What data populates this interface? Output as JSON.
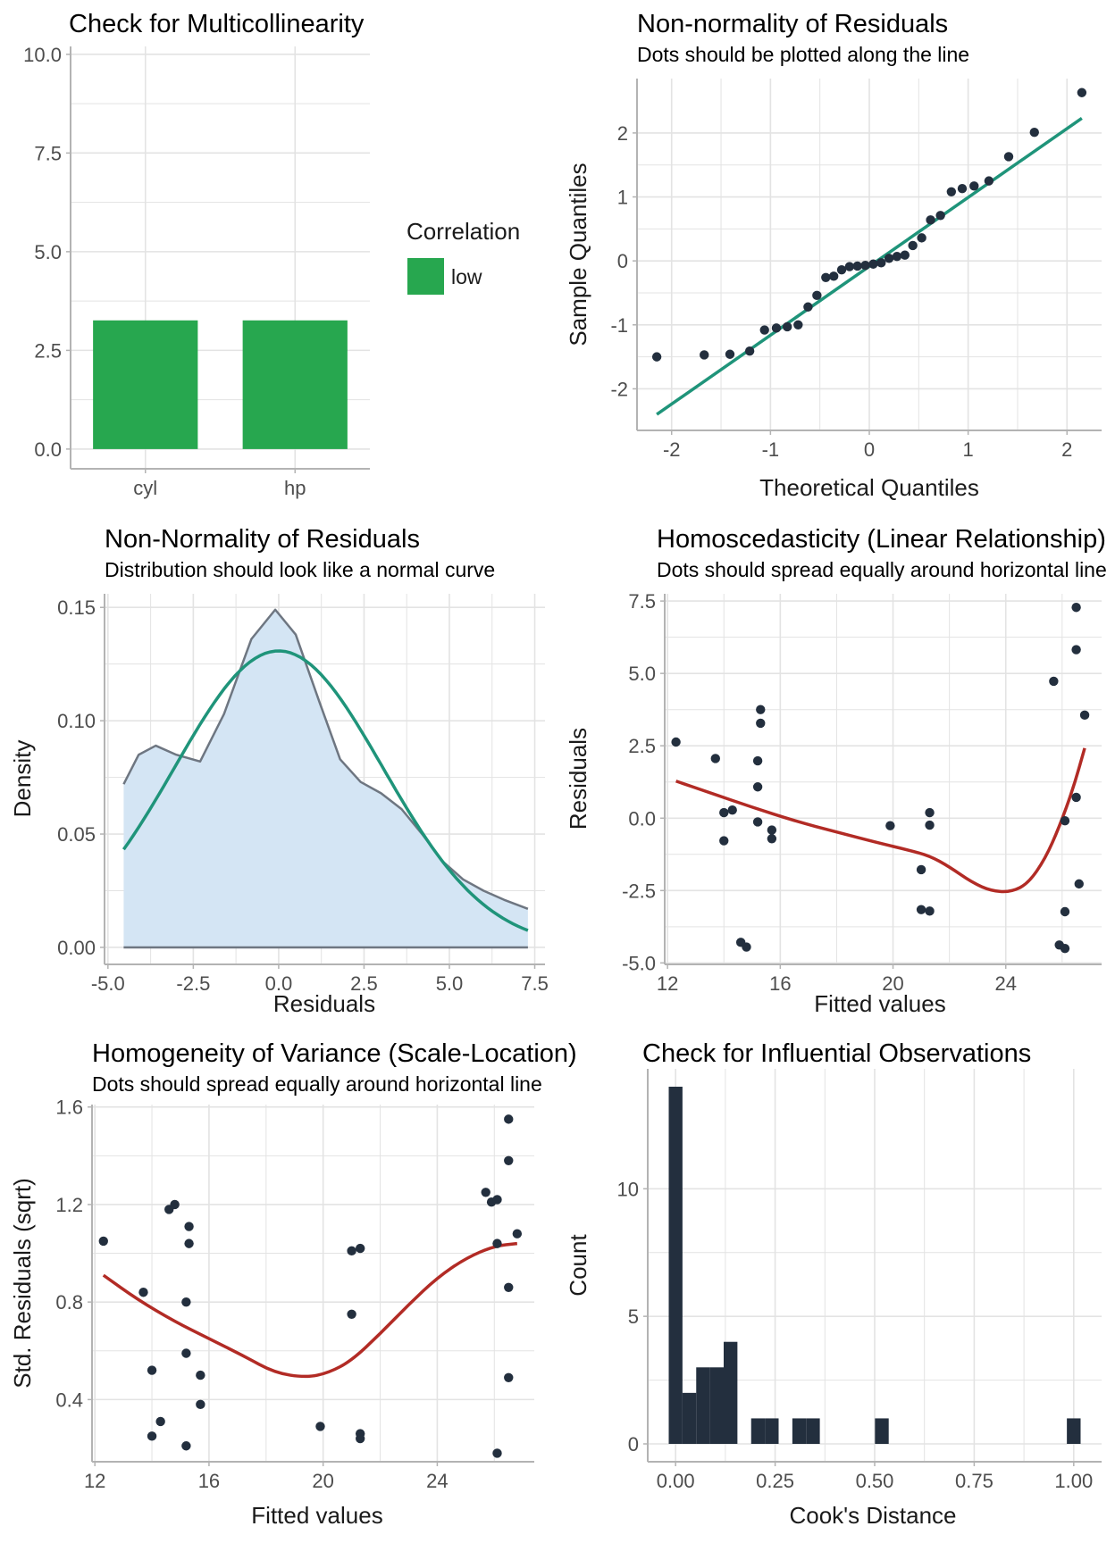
{
  "colors": {
    "bar_green": "#27a74f",
    "teal": "#1f947a",
    "red": "#b22b25",
    "dot": "#232f3e",
    "fill_blue": "#d4e5f4",
    "density_line": "#6e7681",
    "grid": "#e3e3e3",
    "axis": "#b3b3b3"
  },
  "chart_data": [
    {
      "id": "vif",
      "type": "bar",
      "title": "Check for Multicollinearity",
      "subtitle": "",
      "xlabel": "",
      "ylabel": "",
      "categories": [
        "cyl",
        "hp"
      ],
      "values": [
        3.26,
        3.26
      ],
      "ylim": [
        -0.5,
        10.2
      ],
      "yticks": [
        0.0,
        2.5,
        5.0,
        7.5,
        10.0
      ],
      "ytick_labels": [
        "0.0",
        "2.5",
        "5.0",
        "7.5",
        "10.0"
      ],
      "grid": true,
      "legend": {
        "title": "Correlation",
        "entries": [
          "low"
        ],
        "placement": "right"
      }
    },
    {
      "id": "qq",
      "type": "scatter",
      "title": "Non-normality of Residuals",
      "subtitle": "Dots should be plotted along the line",
      "xlabel": "Theoretical Quantiles",
      "ylabel": "Sample Quantiles",
      "xlim": [
        -2.35,
        2.35
      ],
      "ylim": [
        -2.65,
        2.85
      ],
      "xticks": [
        -2,
        -1,
        0,
        1,
        2
      ],
      "xtick_labels": [
        "-2",
        "-1",
        "0",
        "1",
        "2"
      ],
      "yticks": [
        -2,
        -1,
        0,
        1,
        2
      ],
      "ytick_labels": [
        "-2",
        "-1",
        "0",
        "1",
        "2"
      ],
      "grid": true,
      "points": [
        [
          -2.15,
          -1.5
        ],
        [
          -1.67,
          -1.47
        ],
        [
          -1.41,
          -1.46
        ],
        [
          -1.21,
          -1.41
        ],
        [
          -1.06,
          -1.08
        ],
        [
          -0.94,
          -1.05
        ],
        [
          -0.83,
          -1.03
        ],
        [
          -0.72,
          -1.0
        ],
        [
          -0.62,
          -0.72
        ],
        [
          -0.53,
          -0.54
        ],
        [
          -0.44,
          -0.26
        ],
        [
          -0.36,
          -0.24
        ],
        [
          -0.28,
          -0.14
        ],
        [
          -0.2,
          -0.09
        ],
        [
          -0.12,
          -0.08
        ],
        [
          -0.04,
          -0.07
        ],
        [
          0.04,
          -0.05
        ],
        [
          0.12,
          -0.03
        ],
        [
          0.2,
          0.04
        ],
        [
          0.28,
          0.07
        ],
        [
          0.36,
          0.09
        ],
        [
          0.44,
          0.24
        ],
        [
          0.53,
          0.36
        ],
        [
          0.62,
          0.64
        ],
        [
          0.72,
          0.71
        ],
        [
          0.83,
          1.08
        ],
        [
          0.94,
          1.13
        ],
        [
          1.06,
          1.17
        ],
        [
          1.21,
          1.25
        ],
        [
          1.41,
          1.63
        ],
        [
          1.67,
          2.01
        ],
        [
          2.15,
          2.63
        ]
      ],
      "line": [
        [
          -2.15,
          -2.4
        ],
        [
          2.15,
          2.23
        ]
      ]
    },
    {
      "id": "density",
      "type": "area",
      "title": "Non-Normality of Residuals",
      "subtitle": "Distribution should look like a normal curve",
      "xlabel": "Residuals",
      "ylabel": "Density",
      "xlim": [
        -5.1,
        7.8
      ],
      "ylim": [
        -0.0075,
        0.156
      ],
      "xticks": [
        -5.0,
        -2.5,
        0.0,
        2.5,
        5.0,
        7.5
      ],
      "xtick_labels": [
        "-5.0",
        "-2.5",
        "0.0",
        "2.5",
        "5.0",
        "7.5"
      ],
      "yticks": [
        0.0,
        0.05,
        0.1,
        0.15
      ],
      "ytick_labels": [
        "0.00",
        "0.05",
        "0.10",
        "0.15"
      ],
      "grid": true,
      "density": [
        [
          -4.54,
          0.072
        ],
        [
          -4.1,
          0.085
        ],
        [
          -3.6,
          0.089
        ],
        [
          -3.0,
          0.085
        ],
        [
          -2.3,
          0.082
        ],
        [
          -1.6,
          0.103
        ],
        [
          -0.8,
          0.136
        ],
        [
          -0.1,
          0.149
        ],
        [
          0.5,
          0.138
        ],
        [
          1.2,
          0.108
        ],
        [
          1.8,
          0.083
        ],
        [
          2.4,
          0.073
        ],
        [
          3.0,
          0.068
        ],
        [
          3.6,
          0.061
        ],
        [
          4.2,
          0.05
        ],
        [
          4.8,
          0.038
        ],
        [
          5.4,
          0.03
        ],
        [
          6.0,
          0.025
        ],
        [
          6.6,
          0.021
        ],
        [
          7.3,
          0.017
        ]
      ],
      "normal": {
        "mean": 0.0,
        "sd": 3.05,
        "xmin": -4.54,
        "xmax": 7.3
      }
    },
    {
      "id": "homosc",
      "type": "scatter",
      "title": "Homoscedasticity (Linear Relationship)",
      "subtitle": "Dots should spread equally around horizontal line",
      "xlabel": "Fitted values",
      "ylabel": "Residuals",
      "xlim": [
        11.9,
        27.4
      ],
      "ylim": [
        -5.05,
        7.75
      ],
      "xticks": [
        12,
        16,
        20,
        24
      ],
      "xtick_labels": [
        "12",
        "16",
        "20",
        "24"
      ],
      "yticks": [
        -5.0,
        -2.5,
        0.0,
        2.5,
        5.0,
        7.5
      ],
      "ytick_labels": [
        "-5.0",
        "-2.5",
        "0.0",
        "2.5",
        "5.0",
        "7.5"
      ],
      "grid": true,
      "points": [
        [
          12.3,
          2.63
        ],
        [
          13.7,
          2.06
        ],
        [
          14.0,
          0.19
        ],
        [
          14.0,
          -0.78
        ],
        [
          14.3,
          0.28
        ],
        [
          14.6,
          -4.29
        ],
        [
          14.8,
          -4.45
        ],
        [
          15.3,
          3.75
        ],
        [
          15.3,
          3.28
        ],
        [
          15.2,
          1.98
        ],
        [
          15.2,
          1.08
        ],
        [
          15.2,
          -0.13
        ],
        [
          15.7,
          -0.41
        ],
        [
          15.7,
          -0.71
        ],
        [
          19.9,
          -0.26
        ],
        [
          21.0,
          -1.78
        ],
        [
          21.0,
          -3.16
        ],
        [
          21.3,
          0.19
        ],
        [
          21.3,
          -0.24
        ],
        [
          21.3,
          -3.21
        ],
        [
          25.7,
          4.73
        ],
        [
          25.9,
          -4.38
        ],
        [
          26.1,
          -4.5
        ],
        [
          26.1,
          -3.23
        ],
        [
          26.1,
          -0.09
        ],
        [
          26.5,
          7.28
        ],
        [
          26.5,
          5.82
        ],
        [
          26.5,
          0.72
        ],
        [
          26.6,
          -2.27
        ],
        [
          26.8,
          3.56
        ]
      ],
      "smooth": [
        [
          12.3,
          1.28
        ],
        [
          13.5,
          0.88
        ],
        [
          15.0,
          0.38
        ],
        [
          16.5,
          -0.09
        ],
        [
          18.0,
          -0.48
        ],
        [
          19.5,
          -0.86
        ],
        [
          20.5,
          -1.09
        ],
        [
          21.3,
          -1.3
        ],
        [
          22.0,
          -1.68
        ],
        [
          22.8,
          -2.22
        ],
        [
          23.5,
          -2.52
        ],
        [
          24.2,
          -2.55
        ],
        [
          24.8,
          -2.25
        ],
        [
          25.4,
          -1.4
        ],
        [
          25.9,
          -0.3
        ],
        [
          26.4,
          1.05
        ],
        [
          26.8,
          2.42
        ]
      ]
    },
    {
      "id": "scaleloc",
      "type": "scatter",
      "title": "Homogeneity of Variance (Scale-Location)",
      "subtitle": "Dots should spread equally around horizontal line",
      "xlabel": "Fitted values",
      "ylabel": "Std. Residuals (sqrt)",
      "xlim": [
        11.9,
        27.4
      ],
      "ylim": [
        0.145,
        1.61
      ],
      "xticks": [
        12,
        16,
        20,
        24
      ],
      "xtick_labels": [
        "12",
        "16",
        "20",
        "24"
      ],
      "yticks": [
        0.4,
        0.8,
        1.2,
        1.6
      ],
      "ytick_labels": [
        "0.4",
        "0.8",
        "1.2",
        "1.6"
      ],
      "grid": true,
      "points": [
        [
          12.3,
          1.05
        ],
        [
          13.7,
          0.84
        ],
        [
          14.0,
          0.52
        ],
        [
          14.0,
          0.25
        ],
        [
          14.3,
          0.31
        ],
        [
          14.6,
          1.18
        ],
        [
          14.8,
          1.2
        ],
        [
          15.3,
          1.11
        ],
        [
          15.3,
          1.04
        ],
        [
          15.2,
          0.8
        ],
        [
          15.2,
          0.59
        ],
        [
          15.2,
          0.21
        ],
        [
          15.7,
          0.5
        ],
        [
          15.7,
          0.38
        ],
        [
          19.9,
          0.29
        ],
        [
          21.0,
          1.01
        ],
        [
          21.0,
          0.75
        ],
        [
          21.3,
          1.02
        ],
        [
          21.3,
          0.26
        ],
        [
          21.3,
          0.24
        ],
        [
          25.7,
          1.25
        ],
        [
          25.9,
          1.21
        ],
        [
          26.1,
          1.22
        ],
        [
          26.1,
          1.04
        ],
        [
          26.1,
          0.18
        ],
        [
          26.5,
          1.55
        ],
        [
          26.5,
          1.38
        ],
        [
          26.5,
          0.86
        ],
        [
          26.5,
          0.49
        ],
        [
          26.8,
          1.08
        ]
      ],
      "smooth": [
        [
          12.3,
          0.91
        ],
        [
          13.5,
          0.81
        ],
        [
          14.8,
          0.72
        ],
        [
          16.0,
          0.65
        ],
        [
          17.2,
          0.58
        ],
        [
          18.3,
          0.51
        ],
        [
          19.4,
          0.49
        ],
        [
          20.2,
          0.51
        ],
        [
          21.0,
          0.56
        ],
        [
          22.0,
          0.67
        ],
        [
          23.0,
          0.79
        ],
        [
          24.0,
          0.9
        ],
        [
          25.0,
          0.98
        ],
        [
          26.0,
          1.03
        ],
        [
          26.8,
          1.04
        ]
      ]
    },
    {
      "id": "cooks",
      "type": "bar",
      "title": "Check for Influential Observations",
      "subtitle": "",
      "xlabel": "Cook's Distance",
      "ylabel": "Count",
      "xlim": [
        -0.07,
        1.07
      ],
      "ylim": [
        -0.7,
        14.7
      ],
      "xticks": [
        0.0,
        0.25,
        0.5,
        0.75,
        1.0
      ],
      "xtick_labels": [
        "0.00",
        "0.25",
        "0.50",
        "0.75",
        "1.00"
      ],
      "yticks": [
        0,
        5,
        10
      ],
      "ytick_labels": [
        "0",
        "5",
        "10"
      ],
      "grid": true,
      "bin_width": 0.0345,
      "bins": [
        [
          0.0,
          14
        ],
        [
          0.0345,
          2
        ],
        [
          0.069,
          3
        ],
        [
          0.1035,
          3
        ],
        [
          0.138,
          4
        ],
        [
          0.207,
          1
        ],
        [
          0.2415,
          1
        ],
        [
          0.3105,
          1
        ],
        [
          0.345,
          1
        ],
        [
          0.518,
          1
        ],
        [
          1.0,
          1
        ]
      ]
    }
  ]
}
